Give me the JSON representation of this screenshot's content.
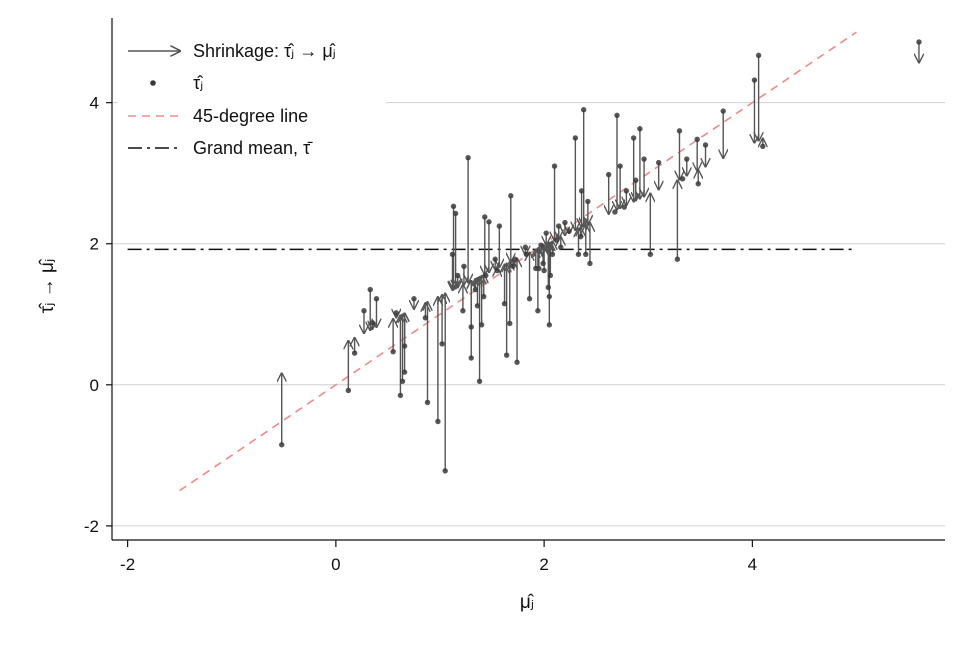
{
  "chart_data": {
    "type": "scatter",
    "xlabel": "μ̂ⱼ",
    "ylabel": "τ̂ⱼ → μ̂ⱼ",
    "xlim": [
      -2.15,
      5.85
    ],
    "ylim": [
      -2.2,
      5.2
    ],
    "x_ticks": [
      -2,
      0,
      2,
      4
    ],
    "x_tick_labels": [
      "-2",
      "0",
      "2",
      "4"
    ],
    "y_ticks": [
      -2,
      0,
      2,
      4
    ],
    "y_tick_labels": [
      "-2",
      "0",
      "2",
      "4"
    ],
    "grid": "horizontal",
    "legend_position": "top-left",
    "legend": [
      {
        "key": "shrinkage",
        "label": "Shrinkage: τ̂ⱼ → μ̂ⱼ",
        "style": "arrow"
      },
      {
        "key": "estimate",
        "label": "τ̂ⱼ",
        "style": "point"
      },
      {
        "key": "diagonal",
        "label": "45-degree line",
        "style": "dashed"
      },
      {
        "key": "grand_mean",
        "label": "Grand mean, τ̄",
        "style": "dash-dot"
      }
    ],
    "grand_mean": 1.92,
    "grand_mean_x_range": [
      -2,
      5
    ],
    "diagonal_x_range": [
      -1.5,
      5
    ],
    "colors": {
      "arrow": "#555555",
      "point": "#3a3a3a",
      "diagonal": "#f08a8a",
      "grand_mean": "#111111",
      "grid": "#d0d0d0",
      "axis": "#111111"
    },
    "series": [
      {
        "name": "Shrinkage: τ̂ⱼ → μ̂ⱼ",
        "columns": [
          "mu_hat",
          "tau_hat"
        ],
        "points": [
          [
            -0.52,
            -0.85
          ],
          [
            0.12,
            -0.08
          ],
          [
            0.18,
            0.45
          ],
          [
            0.27,
            1.05
          ],
          [
            0.33,
            1.35
          ],
          [
            0.35,
            0.88
          ],
          [
            0.39,
            1.22
          ],
          [
            0.55,
            0.47
          ],
          [
            0.58,
            1.02
          ],
          [
            0.62,
            -0.15
          ],
          [
            0.64,
            0.05
          ],
          [
            0.66,
            0.18
          ],
          [
            0.66,
            0.55
          ],
          [
            0.75,
            1.22
          ],
          [
            0.86,
            0.95
          ],
          [
            0.88,
            -0.25
          ],
          [
            0.98,
            -0.52
          ],
          [
            1.02,
            0.58
          ],
          [
            1.05,
            -1.22
          ],
          [
            1.12,
            1.85
          ],
          [
            1.13,
            2.53
          ],
          [
            1.15,
            2.43
          ],
          [
            1.17,
            1.55
          ],
          [
            1.22,
            1.05
          ],
          [
            1.23,
            1.68
          ],
          [
            1.27,
            3.22
          ],
          [
            1.3,
            0.38
          ],
          [
            1.3,
            0.82
          ],
          [
            1.34,
            1.35
          ],
          [
            1.36,
            1.12
          ],
          [
            1.38,
            0.05
          ],
          [
            1.4,
            0.85
          ],
          [
            1.42,
            1.25
          ],
          [
            1.43,
            2.38
          ],
          [
            1.44,
            1.55
          ],
          [
            1.47,
            2.31
          ],
          [
            1.53,
            1.78
          ],
          [
            1.55,
            1.62
          ],
          [
            1.57,
            2.25
          ],
          [
            1.62,
            1.15
          ],
          [
            1.64,
            0.42
          ],
          [
            1.67,
            0.87
          ],
          [
            1.68,
            2.68
          ],
          [
            1.7,
            1.68
          ],
          [
            1.72,
            1.78
          ],
          [
            1.74,
            0.32
          ],
          [
            1.82,
            1.95
          ],
          [
            1.83,
            1.85
          ],
          [
            1.86,
            1.22
          ],
          [
            1.92,
            1.65
          ],
          [
            1.94,
            1.05
          ],
          [
            1.95,
            1.65
          ],
          [
            1.97,
            1.98
          ],
          [
            1.99,
            1.72
          ],
          [
            2.0,
            1.62
          ],
          [
            2.02,
            2.15
          ],
          [
            2.04,
            1.38
          ],
          [
            2.05,
            0.85
          ],
          [
            2.05,
            1.25
          ],
          [
            2.06,
            1.55
          ],
          [
            2.08,
            1.85
          ],
          [
            2.1,
            3.1
          ],
          [
            2.12,
            2.05
          ],
          [
            2.14,
            2.25
          ],
          [
            2.16,
            1.95
          ],
          [
            2.2,
            2.3
          ],
          [
            2.24,
            2.18
          ],
          [
            2.3,
            3.5
          ],
          [
            2.33,
            1.85
          ],
          [
            2.35,
            2.1
          ],
          [
            2.36,
            2.75
          ],
          [
            2.38,
            3.9
          ],
          [
            2.4,
            1.85
          ],
          [
            2.42,
            2.6
          ],
          [
            2.44,
            1.72
          ],
          [
            2.62,
            2.98
          ],
          [
            2.68,
            2.45
          ],
          [
            2.7,
            3.82
          ],
          [
            2.73,
            3.1
          ],
          [
            2.77,
            2.52
          ],
          [
            2.79,
            2.75
          ],
          [
            2.86,
            3.5
          ],
          [
            2.88,
            2.9
          ],
          [
            2.92,
            3.63
          ],
          [
            2.96,
            3.2
          ],
          [
            3.02,
            1.85
          ],
          [
            3.1,
            3.15
          ],
          [
            3.28,
            1.78
          ],
          [
            3.3,
            3.6
          ],
          [
            3.33,
            2.92
          ],
          [
            3.37,
            3.2
          ],
          [
            3.47,
            3.48
          ],
          [
            3.48,
            2.85
          ],
          [
            3.55,
            3.4
          ],
          [
            3.72,
            3.88
          ],
          [
            4.02,
            4.32
          ],
          [
            4.06,
            4.67
          ],
          [
            4.1,
            3.38
          ],
          [
            5.6,
            4.86
          ]
        ]
      }
    ]
  }
}
